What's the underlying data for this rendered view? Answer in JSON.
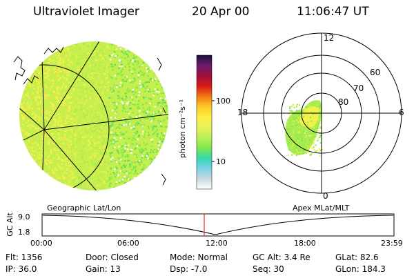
{
  "header": {
    "title": "Ultraviolet Imager",
    "date": "20 Apr 00",
    "time": "11:06:47 UT"
  },
  "colorbar": {
    "unit_label": "photon cm⁻²s⁻¹",
    "ticks": [
      "100",
      "10"
    ],
    "colors": [
      "#1a0f3a",
      "#6a1c6e",
      "#a0103a",
      "#d81818",
      "#f07a10",
      "#ffc828",
      "#ffef40",
      "#e6f25a",
      "#b9f05a",
      "#7fe84a",
      "#35d8b0",
      "#7ad0e8",
      "#c8d8e0",
      "#ffffff"
    ]
  },
  "left_panel": {
    "caption": "Geographic Lat/Lon"
  },
  "right_panel": {
    "caption": "Apex MLat/MLT",
    "mlt_labels": {
      "top": "12",
      "left": "18",
      "right": "6",
      "bottom": "0"
    },
    "lat_labels": [
      "60",
      "70",
      "80"
    ]
  },
  "timeline": {
    "axis_title": "GC Alt",
    "y_ticks": [
      "9.0",
      "1.8"
    ],
    "x_ticks": [
      "00:00",
      "06:00",
      "12:00",
      "18:00",
      "23:59"
    ],
    "current_marker_color": "#e03030"
  },
  "footer": {
    "flt": "Flt: 1356",
    "ip": "IP: 36.0",
    "door": "Door: Closed",
    "gain": "Gain: 13",
    "mode": "Mode: Normal",
    "dsp": "Dsp:    -7.0",
    "gc_alt": "GC Alt: 3.4 Re",
    "seq": "Seq: 30",
    "glat": "GLat:  82.6",
    "glon": "GLon: 184.3"
  }
}
